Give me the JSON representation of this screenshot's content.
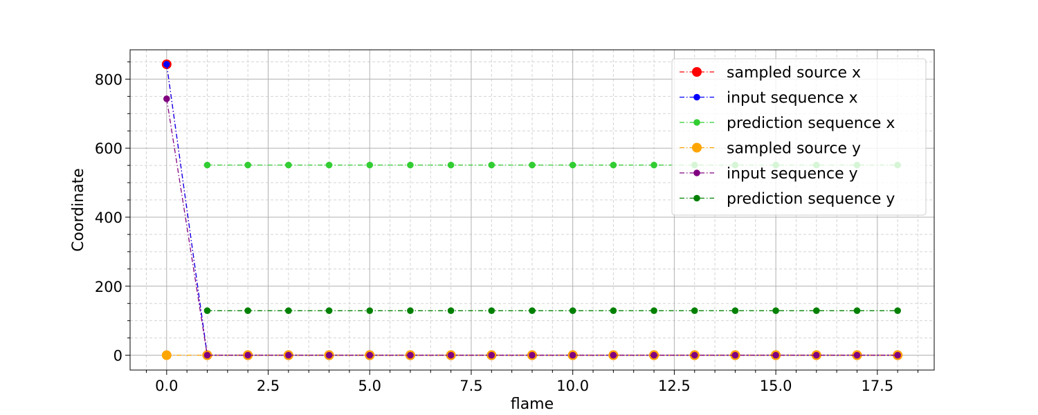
{
  "chart_data": {
    "type": "line",
    "title": "",
    "xlabel": "flame",
    "ylabel": "Coordinate",
    "xlim": [
      -0.9,
      18.9
    ],
    "ylim": [
      -43,
      885
    ],
    "xticks": [
      0.0,
      2.5,
      5.0,
      7.5,
      10.0,
      12.5,
      15.0,
      17.5
    ],
    "xtick_labels": [
      "0.0",
      "2.5",
      "5.0",
      "7.5",
      "10.0",
      "12.5",
      "15.0",
      "17.5"
    ],
    "yticks": [
      0,
      200,
      400,
      600,
      800
    ],
    "ytick_labels": [
      "0",
      "200",
      "400",
      "600",
      "800"
    ],
    "grid": true,
    "legend_position": "top-right",
    "series": [
      {
        "name": "sampled source x",
        "color": "#ff0000",
        "marker": "large",
        "x": [
          0,
          1,
          2,
          3,
          4,
          5,
          6,
          7,
          8,
          9,
          10,
          11,
          12,
          13,
          14,
          15,
          16,
          17,
          18
        ],
        "y": [
          843,
          0,
          0,
          0,
          0,
          0,
          0,
          0,
          0,
          0,
          0,
          0,
          0,
          0,
          0,
          0,
          0,
          0,
          0
        ]
      },
      {
        "name": "input sequence x",
        "color": "#0000ff",
        "marker": "small",
        "x": [
          0,
          1,
          2,
          3,
          4,
          5,
          6,
          7,
          8,
          9,
          10,
          11,
          12,
          13,
          14,
          15,
          16,
          17,
          18
        ],
        "y": [
          843,
          0,
          0,
          0,
          0,
          0,
          0,
          0,
          0,
          0,
          0,
          0,
          0,
          0,
          0,
          0,
          0,
          0,
          0
        ]
      },
      {
        "name": "prediction sequence x",
        "color": "#32cd32",
        "marker": "small",
        "x": [
          1,
          2,
          3,
          4,
          5,
          6,
          7,
          8,
          9,
          10,
          11,
          12,
          13,
          14,
          15,
          16,
          17,
          18
        ],
        "y": [
          551,
          551,
          551,
          551,
          551,
          551,
          551,
          551,
          551,
          551,
          551,
          551,
          551,
          551,
          551,
          551,
          551,
          551
        ]
      },
      {
        "name": "sampled source y",
        "color": "#ffa500",
        "marker": "large",
        "x": [
          0,
          1,
          2,
          3,
          4,
          5,
          6,
          7,
          8,
          9,
          10,
          11,
          12,
          13,
          14,
          15,
          16,
          17,
          18
        ],
        "y": [
          0,
          0,
          0,
          0,
          0,
          0,
          0,
          0,
          0,
          0,
          0,
          0,
          0,
          0,
          0,
          0,
          0,
          0,
          0
        ]
      },
      {
        "name": "input sequence y",
        "color": "#800080",
        "marker": "small",
        "x": [
          0,
          1,
          2,
          3,
          4,
          5,
          6,
          7,
          8,
          9,
          10,
          11,
          12,
          13,
          14,
          15,
          16,
          17,
          18
        ],
        "y": [
          743,
          0,
          0,
          0,
          0,
          0,
          0,
          0,
          0,
          0,
          0,
          0,
          0,
          0,
          0,
          0,
          0,
          0,
          0
        ]
      },
      {
        "name": "prediction sequence y",
        "color": "#008000",
        "marker": "small",
        "x": [
          1,
          2,
          3,
          4,
          5,
          6,
          7,
          8,
          9,
          10,
          11,
          12,
          13,
          14,
          15,
          16,
          17,
          18
        ],
        "y": [
          129,
          129,
          129,
          129,
          129,
          129,
          129,
          129,
          129,
          129,
          129,
          129,
          129,
          129,
          129,
          129,
          129,
          129
        ]
      }
    ]
  }
}
